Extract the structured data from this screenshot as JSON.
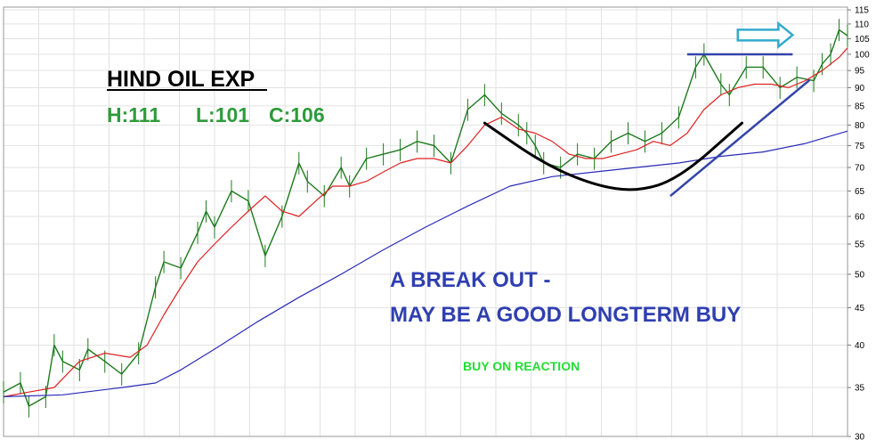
{
  "chart_data": {
    "type": "line",
    "title": "HIND OIL EXP",
    "hlc": {
      "high": "H:111",
      "low": "L:101",
      "close": "C:106"
    },
    "annotations": [
      "A BREAK OUT -",
      "MAY BE A GOOD LONGTERM BUY",
      "BUY ON REACTION"
    ],
    "y_scale": "log",
    "ylim": [
      30,
      116
    ],
    "yticks": [
      30,
      35,
      40,
      45,
      50,
      55,
      60,
      65,
      70,
      75,
      80,
      85,
      90,
      95,
      100,
      105,
      110,
      115
    ],
    "grid": true,
    "x_index_range": [
      0,
      100
    ],
    "series": [
      {
        "role": "price",
        "color": "#1e7a1e",
        "x": [
          0,
          2,
          3,
          5,
          6,
          7,
          9,
          10,
          12,
          14,
          16,
          18,
          19,
          21,
          23,
          24,
          25,
          27,
          29,
          31,
          33,
          35,
          36,
          38,
          40,
          41,
          43,
          45,
          47,
          49,
          51,
          53,
          55,
          57,
          59,
          61,
          62,
          63,
          64,
          66,
          68,
          70,
          72,
          74,
          76,
          78,
          80,
          82,
          83,
          85,
          86,
          88,
          90,
          92,
          94,
          96,
          97,
          98,
          99,
          100
        ],
        "values": [
          34.5,
          35.5,
          33,
          34,
          40,
          38,
          37,
          39.5,
          38,
          36.5,
          39,
          48,
          52,
          51,
          57,
          61,
          58,
          65,
          63,
          53,
          60,
          71,
          67,
          64,
          70,
          66,
          72,
          73,
          74,
          76,
          75,
          71,
          84,
          88,
          83,
          80,
          78,
          75,
          71,
          70,
          73,
          72,
          76,
          78,
          76,
          78,
          82,
          96,
          100,
          91,
          88,
          96,
          96,
          90,
          93,
          92,
          97,
          100,
          108,
          106
        ]
      },
      {
        "role": "short moving average",
        "color": "#dd2222",
        "x": [
          0,
          3,
          6,
          9,
          12,
          15,
          17,
          19,
          21,
          23,
          25,
          27,
          29,
          31,
          33,
          35,
          37,
          39,
          41,
          43,
          45,
          47,
          49,
          51,
          53,
          55,
          57,
          59,
          61,
          63,
          65,
          67,
          69,
          71,
          73,
          75,
          77,
          79,
          81,
          83,
          85,
          87,
          89,
          91,
          93,
          95,
          97,
          99,
          100
        ],
        "values": [
          34,
          34.5,
          35,
          38,
          39,
          38.5,
          40,
          44,
          48,
          52,
          55,
          58,
          61,
          64,
          61,
          60,
          63,
          66,
          66,
          67,
          69,
          71,
          72,
          72,
          71,
          75,
          80,
          82,
          79,
          78,
          76,
          73,
          72,
          72,
          73,
          74,
          76,
          75,
          78,
          84,
          88,
          90,
          91,
          91,
          90,
          92,
          95,
          99,
          102
        ]
      },
      {
        "role": "long moving average",
        "color": "#2a2ab8",
        "x": [
          0,
          7,
          14,
          18,
          21,
          25,
          30,
          35,
          40,
          45,
          50,
          55,
          60,
          65,
          70,
          75,
          80,
          85,
          90,
          95,
          100
        ],
        "values": [
          34,
          34.2,
          35,
          35.5,
          37,
          39.5,
          43,
          46.5,
          50,
          54,
          58,
          62,
          66,
          68,
          69,
          70,
          71,
          72.5,
          73.5,
          75.5,
          78.5
        ]
      }
    ],
    "drawings": [
      {
        "kind": "curve",
        "color": "#000000",
        "x": [
          0.57,
          0.64,
          0.7,
          0.75,
          0.8,
          0.875
        ],
        "y": [
          0.27,
          0.365,
          0.415,
          0.43,
          0.4,
          0.27
        ]
      },
      {
        "kind": "line",
        "color": "#3344aa",
        "x": [
          0.79,
          0.955
        ],
        "y": [
          0.44,
          0.17
        ]
      },
      {
        "kind": "line",
        "color": "#3344aa",
        "x": [
          0.81,
          0.935
        ],
        "y": [
          0.11,
          0.11
        ]
      },
      {
        "kind": "arrow",
        "color": "#33aacc",
        "x": [
          0.87,
          0.935
        ],
        "y": [
          0.065,
          0.065
        ]
      }
    ]
  }
}
